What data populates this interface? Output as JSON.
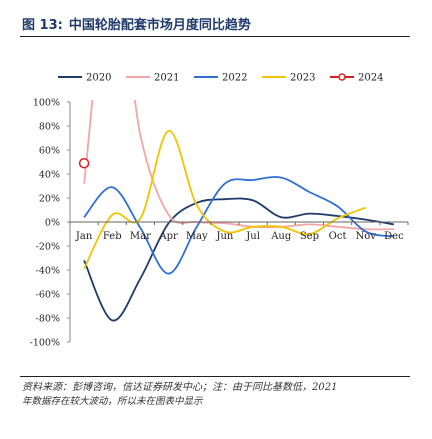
{
  "figure": {
    "label": "图 13:",
    "title": "中国轮胎配套市场月度同比趋势",
    "source": "资料来源：彭博咨询，信达证券研发中心；注：由于同比基数低，2021",
    "source_note": "年数据存在较大波动，所以未在图表中显示"
  },
  "chart_data": {
    "type": "line",
    "categories": [
      "Jan",
      "Feb",
      "Mar",
      "Apr",
      "May",
      "Jun",
      "Jul",
      "Aug",
      "Sep",
      "Oct",
      "Nov",
      "Dec"
    ],
    "ylim": [
      -100,
      100
    ],
    "yticks": [
      100,
      80,
      60,
      40,
      20,
      0,
      -20,
      -40,
      -60,
      -80,
      -100
    ],
    "ytick_labels": [
      "100%",
      "80%",
      "60%",
      "40%",
      "20%",
      "0%",
      "-20%",
      "-40%",
      "-60%",
      "-80%",
      "-100%"
    ],
    "legend_position": "top",
    "series": [
      {
        "name": "2020",
        "color": "#1f3a6b",
        "marker": false,
        "values": [
          -32,
          -82,
          -47,
          -1,
          16,
          19,
          18,
          4,
          7,
          5,
          2,
          -2
        ]
      },
      {
        "name": "2021",
        "color": "#f4a6a6",
        "marker": false,
        "values": [
          32,
          220,
          72,
          6,
          0,
          -1,
          -4,
          -4,
          -2,
          -4,
          -6,
          -6
        ]
      },
      {
        "name": "2022",
        "color": "#2f6fd6",
        "marker": false,
        "values": [
          4,
          29,
          -5,
          -43,
          -4,
          32,
          35,
          37,
          25,
          13,
          -8,
          -12
        ]
      },
      {
        "name": "2023",
        "color": "#f2c400",
        "marker": false,
        "values": [
          -39,
          6,
          3,
          76,
          14,
          -8,
          -4,
          -4,
          -10,
          3,
          12,
          null
        ]
      },
      {
        "name": "2024",
        "color": "#d81e1e",
        "marker": true,
        "values": [
          49,
          null,
          null,
          null,
          null,
          null,
          null,
          null,
          null,
          null,
          null,
          null
        ]
      }
    ]
  }
}
